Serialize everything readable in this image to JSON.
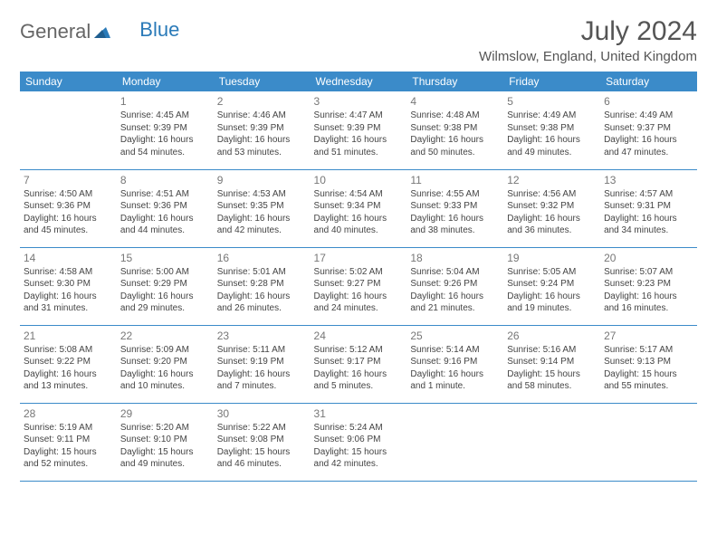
{
  "logo": {
    "word1": "General",
    "word2": "Blue"
  },
  "title": "July 2024",
  "location": "Wilmslow, England, United Kingdom",
  "colors": {
    "header_bg": "#3b8bc9",
    "header_text": "#ffffff",
    "row_border": "#3b8bc9",
    "text": "#444444",
    "daynum": "#777777",
    "logo_gray": "#666666",
    "logo_blue": "#2a7ab8",
    "background": "#ffffff"
  },
  "day_headers": [
    "Sunday",
    "Monday",
    "Tuesday",
    "Wednesday",
    "Thursday",
    "Friday",
    "Saturday"
  ],
  "weeks": [
    [
      null,
      {
        "n": "1",
        "sr": "Sunrise: 4:45 AM",
        "ss": "Sunset: 9:39 PM",
        "d1": "Daylight: 16 hours",
        "d2": "and 54 minutes."
      },
      {
        "n": "2",
        "sr": "Sunrise: 4:46 AM",
        "ss": "Sunset: 9:39 PM",
        "d1": "Daylight: 16 hours",
        "d2": "and 53 minutes."
      },
      {
        "n": "3",
        "sr": "Sunrise: 4:47 AM",
        "ss": "Sunset: 9:39 PM",
        "d1": "Daylight: 16 hours",
        "d2": "and 51 minutes."
      },
      {
        "n": "4",
        "sr": "Sunrise: 4:48 AM",
        "ss": "Sunset: 9:38 PM",
        "d1": "Daylight: 16 hours",
        "d2": "and 50 minutes."
      },
      {
        "n": "5",
        "sr": "Sunrise: 4:49 AM",
        "ss": "Sunset: 9:38 PM",
        "d1": "Daylight: 16 hours",
        "d2": "and 49 minutes."
      },
      {
        "n": "6",
        "sr": "Sunrise: 4:49 AM",
        "ss": "Sunset: 9:37 PM",
        "d1": "Daylight: 16 hours",
        "d2": "and 47 minutes."
      }
    ],
    [
      {
        "n": "7",
        "sr": "Sunrise: 4:50 AM",
        "ss": "Sunset: 9:36 PM",
        "d1": "Daylight: 16 hours",
        "d2": "and 45 minutes."
      },
      {
        "n": "8",
        "sr": "Sunrise: 4:51 AM",
        "ss": "Sunset: 9:36 PM",
        "d1": "Daylight: 16 hours",
        "d2": "and 44 minutes."
      },
      {
        "n": "9",
        "sr": "Sunrise: 4:53 AM",
        "ss": "Sunset: 9:35 PM",
        "d1": "Daylight: 16 hours",
        "d2": "and 42 minutes."
      },
      {
        "n": "10",
        "sr": "Sunrise: 4:54 AM",
        "ss": "Sunset: 9:34 PM",
        "d1": "Daylight: 16 hours",
        "d2": "and 40 minutes."
      },
      {
        "n": "11",
        "sr": "Sunrise: 4:55 AM",
        "ss": "Sunset: 9:33 PM",
        "d1": "Daylight: 16 hours",
        "d2": "and 38 minutes."
      },
      {
        "n": "12",
        "sr": "Sunrise: 4:56 AM",
        "ss": "Sunset: 9:32 PM",
        "d1": "Daylight: 16 hours",
        "d2": "and 36 minutes."
      },
      {
        "n": "13",
        "sr": "Sunrise: 4:57 AM",
        "ss": "Sunset: 9:31 PM",
        "d1": "Daylight: 16 hours",
        "d2": "and 34 minutes."
      }
    ],
    [
      {
        "n": "14",
        "sr": "Sunrise: 4:58 AM",
        "ss": "Sunset: 9:30 PM",
        "d1": "Daylight: 16 hours",
        "d2": "and 31 minutes."
      },
      {
        "n": "15",
        "sr": "Sunrise: 5:00 AM",
        "ss": "Sunset: 9:29 PM",
        "d1": "Daylight: 16 hours",
        "d2": "and 29 minutes."
      },
      {
        "n": "16",
        "sr": "Sunrise: 5:01 AM",
        "ss": "Sunset: 9:28 PM",
        "d1": "Daylight: 16 hours",
        "d2": "and 26 minutes."
      },
      {
        "n": "17",
        "sr": "Sunrise: 5:02 AM",
        "ss": "Sunset: 9:27 PM",
        "d1": "Daylight: 16 hours",
        "d2": "and 24 minutes."
      },
      {
        "n": "18",
        "sr": "Sunrise: 5:04 AM",
        "ss": "Sunset: 9:26 PM",
        "d1": "Daylight: 16 hours",
        "d2": "and 21 minutes."
      },
      {
        "n": "19",
        "sr": "Sunrise: 5:05 AM",
        "ss": "Sunset: 9:24 PM",
        "d1": "Daylight: 16 hours",
        "d2": "and 19 minutes."
      },
      {
        "n": "20",
        "sr": "Sunrise: 5:07 AM",
        "ss": "Sunset: 9:23 PM",
        "d1": "Daylight: 16 hours",
        "d2": "and 16 minutes."
      }
    ],
    [
      {
        "n": "21",
        "sr": "Sunrise: 5:08 AM",
        "ss": "Sunset: 9:22 PM",
        "d1": "Daylight: 16 hours",
        "d2": "and 13 minutes."
      },
      {
        "n": "22",
        "sr": "Sunrise: 5:09 AM",
        "ss": "Sunset: 9:20 PM",
        "d1": "Daylight: 16 hours",
        "d2": "and 10 minutes."
      },
      {
        "n": "23",
        "sr": "Sunrise: 5:11 AM",
        "ss": "Sunset: 9:19 PM",
        "d1": "Daylight: 16 hours",
        "d2": "and 7 minutes."
      },
      {
        "n": "24",
        "sr": "Sunrise: 5:12 AM",
        "ss": "Sunset: 9:17 PM",
        "d1": "Daylight: 16 hours",
        "d2": "and 5 minutes."
      },
      {
        "n": "25",
        "sr": "Sunrise: 5:14 AM",
        "ss": "Sunset: 9:16 PM",
        "d1": "Daylight: 16 hours",
        "d2": "and 1 minute."
      },
      {
        "n": "26",
        "sr": "Sunrise: 5:16 AM",
        "ss": "Sunset: 9:14 PM",
        "d1": "Daylight: 15 hours",
        "d2": "and 58 minutes."
      },
      {
        "n": "27",
        "sr": "Sunrise: 5:17 AM",
        "ss": "Sunset: 9:13 PM",
        "d1": "Daylight: 15 hours",
        "d2": "and 55 minutes."
      }
    ],
    [
      {
        "n": "28",
        "sr": "Sunrise: 5:19 AM",
        "ss": "Sunset: 9:11 PM",
        "d1": "Daylight: 15 hours",
        "d2": "and 52 minutes."
      },
      {
        "n": "29",
        "sr": "Sunrise: 5:20 AM",
        "ss": "Sunset: 9:10 PM",
        "d1": "Daylight: 15 hours",
        "d2": "and 49 minutes."
      },
      {
        "n": "30",
        "sr": "Sunrise: 5:22 AM",
        "ss": "Sunset: 9:08 PM",
        "d1": "Daylight: 15 hours",
        "d2": "and 46 minutes."
      },
      {
        "n": "31",
        "sr": "Sunrise: 5:24 AM",
        "ss": "Sunset: 9:06 PM",
        "d1": "Daylight: 15 hours",
        "d2": "and 42 minutes."
      },
      null,
      null,
      null
    ]
  ]
}
